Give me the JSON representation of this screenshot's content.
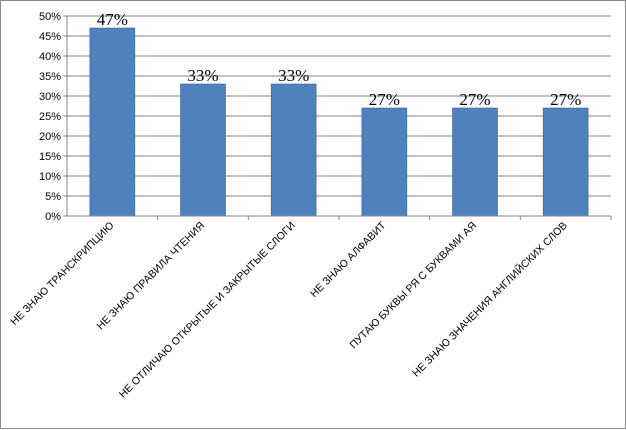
{
  "chart_data": {
    "type": "bar",
    "categories": [
      "НЕ ЗНАЮ ТРАНСКРИПЦИЮ",
      "НЕ ЗНАЮ ПРАВИЛА ЧТЕНИЯ",
      "НЕ ОТЛИЧАЮ ОТКРЫТЫЕ И ЗАКРЫТЫЕ СЛОГИ",
      "НЕ ЗНАЮ АЛФАВИТ",
      "ПУТАЮ БУКВЫ РЯ С БУКВАМИ АЯ",
      "НЕ ЗНАЮ ЗНАЧЕНИЯ АНГЛИЙСКИХ СЛОВ"
    ],
    "values": [
      47,
      33,
      33,
      27,
      27,
      27
    ],
    "data_labels": [
      "47%",
      "33%",
      "33%",
      "27%",
      "27%",
      "27%"
    ],
    "y_ticks": [
      "0%",
      "5%",
      "10%",
      "15%",
      "20%",
      "25%",
      "30%",
      "35%",
      "40%",
      "45%",
      "50%"
    ],
    "ylim": [
      0,
      50
    ],
    "title": "",
    "xlabel": "",
    "ylabel": "",
    "grid": true,
    "legend": "none",
    "colors": {
      "bar": "#4F81BD",
      "bar_edge": "#3A6699",
      "grid": "#868686",
      "axis": "#868686"
    }
  }
}
